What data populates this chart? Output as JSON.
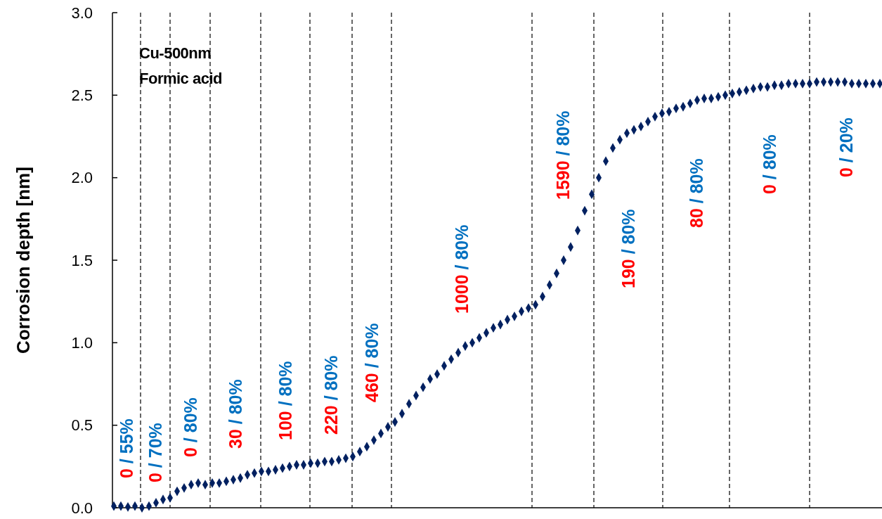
{
  "chart_data": {
    "type": "scatter",
    "ylabel": "Corrosion depth [nm]",
    "tick_labels": "y",
    "marker": "diamond",
    "grid": false,
    "ylim": [
      0,
      3
    ],
    "yticks": [
      {
        "value": 0,
        "label": "0.0"
      },
      {
        "value": 0.5,
        "label": "0.5"
      },
      {
        "value": 1,
        "label": "1.0"
      },
      {
        "value": 1.5,
        "label": "1.5"
      },
      {
        "value": 2,
        "label": "2.0"
      },
      {
        "value": 2.5,
        "label": "2.5"
      },
      {
        "value": 3,
        "label": "3.0"
      }
    ],
    "categories": [
      null,
      null,
      null,
      null,
      null,
      null,
      null,
      null,
      null,
      null,
      null,
      null,
      null,
      null,
      null,
      null,
      null,
      null,
      null,
      null,
      null,
      null,
      null,
      null,
      null,
      null,
      null,
      null,
      null,
      null,
      null,
      null,
      null,
      null,
      null,
      null,
      null,
      null,
      null,
      null,
      null,
      null,
      null,
      null,
      null,
      null,
      null,
      null,
      null,
      null,
      null,
      null,
      null,
      null,
      null,
      null,
      null,
      null,
      null,
      null,
      null,
      null,
      null,
      null,
      null,
      null,
      null,
      null,
      null,
      null,
      null,
      null,
      null,
      null,
      null,
      null,
      null,
      null,
      null,
      null,
      null,
      null,
      null,
      null,
      null,
      null,
      null,
      null,
      null,
      null,
      null,
      null,
      null,
      null,
      null,
      null,
      null,
      null,
      null,
      null,
      null,
      null,
      null,
      null,
      null,
      null,
      null,
      null,
      null,
      null
    ],
    "series": [
      {
        "color": "#002060",
        "values": [
          0.01,
          0.01,
          0.005,
          0.01,
          0.0,
          0.01,
          0.03,
          0.05,
          0.06,
          0.1,
          0.12,
          0.14,
          0.15,
          0.14,
          0.15,
          0.15,
          0.16,
          0.17,
          0.18,
          0.2,
          0.21,
          0.22,
          0.22,
          0.23,
          0.24,
          0.25,
          0.26,
          0.26,
          0.27,
          0.27,
          0.28,
          0.28,
          0.29,
          0.3,
          0.31,
          0.34,
          0.37,
          0.41,
          0.45,
          0.49,
          0.52,
          0.57,
          0.63,
          0.68,
          0.73,
          0.78,
          0.81,
          0.86,
          0.9,
          0.94,
          0.98,
          1.0,
          1.03,
          1.06,
          1.09,
          1.11,
          1.14,
          1.16,
          1.19,
          1.21,
          1.23,
          1.28,
          1.35,
          1.42,
          1.5,
          1.58,
          1.68,
          1.8,
          1.9,
          2.0,
          2.1,
          2.18,
          2.23,
          2.27,
          2.29,
          2.31,
          2.34,
          2.37,
          2.39,
          2.4,
          2.42,
          2.43,
          2.45,
          2.47,
          2.48,
          2.48,
          2.49,
          2.5,
          2.51,
          2.52,
          2.53,
          2.54,
          2.55,
          2.55,
          2.56,
          2.56,
          2.57,
          2.57,
          2.57,
          2.57,
          2.58,
          2.58,
          2.58,
          2.58,
          2.58,
          2.57,
          2.57,
          2.57,
          2.57,
          2.57
        ]
      }
    ],
    "annotations": [
      "Cu-500nm\nFormic acid",
      "0 / 55%",
      "0 / 70%",
      "0 / 80%",
      "30 / 80%",
      "100 / 80%",
      "220 / 80%",
      "460 / 80%",
      "1000 / 80%",
      "1590 / 80%",
      "190 / 80%",
      "80 / 80%",
      "0 / 80%",
      "0 / 20%"
    ]
  }
}
